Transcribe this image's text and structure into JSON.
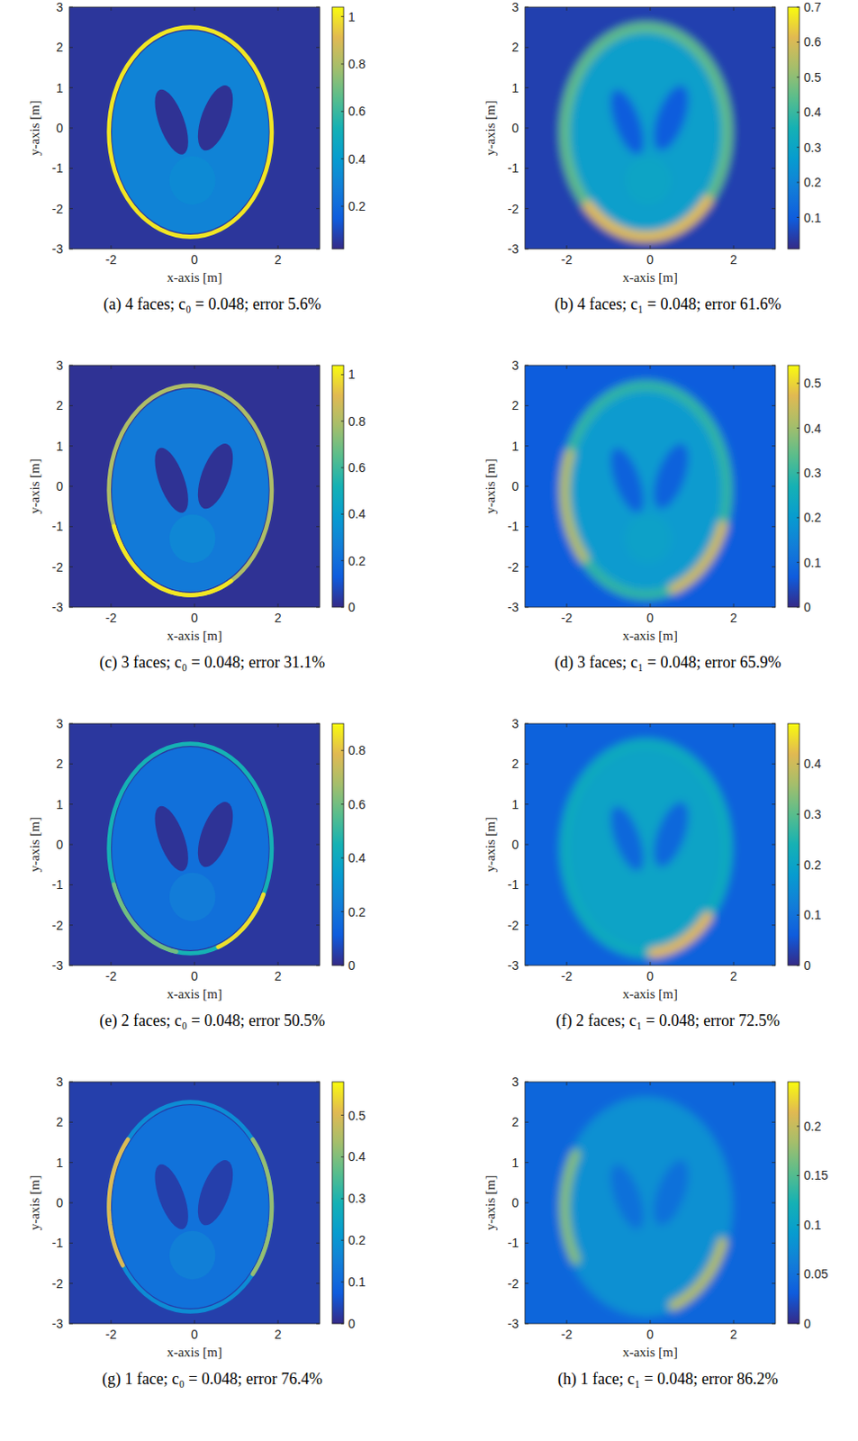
{
  "chart_data": [
    {
      "type": "heatmap",
      "caption": "(a) 4 faces; c₀ = 0.048; error 5.6%",
      "xlabel": "x-axis [m]",
      "ylabel": "y-axis [m]",
      "xlim": [
        -3,
        3
      ],
      "ylim": [
        -3,
        3
      ],
      "xticks": [
        -2,
        0,
        2
      ],
      "yticks": [
        -3,
        -2,
        -1,
        0,
        1,
        2,
        3
      ],
      "colorbar": {
        "lim": [
          0.02,
          1.04
        ],
        "ticks": [
          0.2,
          0.4,
          0.6,
          0.8,
          1
        ]
      },
      "background": 0.05,
      "shapes": [
        {
          "kind": "ellipse",
          "cx": -0.1,
          "cy": -0.1,
          "rx": 1.88,
          "ry": 2.52,
          "value": 0.3
        },
        {
          "kind": "ellipse",
          "cx": -0.05,
          "cy": -1.3,
          "rx": 0.55,
          "ry": 0.6,
          "value": 0.33
        },
        {
          "kind": "ellipse",
          "cx": -0.55,
          "cy": 0.15,
          "rx": 0.3,
          "ry": 0.85,
          "angle": 20,
          "value": 0.04
        },
        {
          "kind": "ellipse",
          "cx": 0.5,
          "cy": 0.25,
          "rx": 0.33,
          "ry": 0.85,
          "angle": -20,
          "value": 0.04
        },
        {
          "kind": "ring",
          "cx": -0.1,
          "cy": -0.1,
          "rx": 1.95,
          "ry": 2.6,
          "width": 0.1,
          "value": 1.0
        }
      ]
    },
    {
      "type": "heatmap",
      "caption": "(b) 4 faces; c₁ = 0.048; error 61.6%",
      "xlabel": "x-axis [m]",
      "ylabel": "y-axis [m]",
      "xlim": [
        -3,
        3
      ],
      "ylim": [
        -3,
        3
      ],
      "xticks": [
        -2,
        0,
        2
      ],
      "yticks": [
        -3,
        -2,
        -1,
        0,
        1,
        2,
        3
      ],
      "colorbar": {
        "lim": [
          0.01,
          0.7
        ],
        "ticks": [
          0.1,
          0.2,
          0.3,
          0.4,
          0.5,
          0.6,
          0.7
        ]
      },
      "background": 0.05,
      "shapes": [
        {
          "kind": "ellipse",
          "cx": -0.1,
          "cy": -0.1,
          "rx": 1.88,
          "ry": 2.52,
          "value": 0.28
        },
        {
          "kind": "ellipse",
          "cx": -0.05,
          "cy": -1.3,
          "rx": 0.55,
          "ry": 0.6,
          "value": 0.3
        },
        {
          "kind": "ellipse",
          "cx": -0.55,
          "cy": 0.15,
          "rx": 0.3,
          "ry": 0.85,
          "angle": 20,
          "value": 0.1
        },
        {
          "kind": "ellipse",
          "cx": 0.5,
          "cy": 0.25,
          "rx": 0.33,
          "ry": 0.85,
          "angle": -20,
          "value": 0.1
        },
        {
          "kind": "ring",
          "cx": -0.1,
          "cy": -0.1,
          "rx": 1.95,
          "ry": 2.6,
          "width": 0.25,
          "value": 0.45
        },
        {
          "kind": "arc",
          "cx": -0.1,
          "cy": -0.1,
          "rx": 1.95,
          "ry": 2.6,
          "width": 0.25,
          "from": 225,
          "to": 320,
          "value": 0.62
        }
      ]
    },
    {
      "type": "heatmap",
      "caption": "(c) 3 faces; c₀ = 0.048; error 31.1%",
      "xlabel": "x-axis [m]",
      "ylabel": "y-axis [m]",
      "xlim": [
        -3,
        3
      ],
      "ylim": [
        -3,
        3
      ],
      "xticks": [
        -2,
        0,
        2
      ],
      "yticks": [
        -3,
        -2,
        -1,
        0,
        1,
        2,
        3
      ],
      "colorbar": {
        "lim": [
          0,
          1.04
        ],
        "ticks": [
          0,
          0.2,
          0.4,
          0.6,
          0.8,
          1
        ]
      },
      "background": 0.02,
      "shapes": [
        {
          "kind": "ellipse",
          "cx": -0.1,
          "cy": -0.1,
          "rx": 1.88,
          "ry": 2.52,
          "value": 0.25
        },
        {
          "kind": "ellipse",
          "cx": -0.05,
          "cy": -1.3,
          "rx": 0.55,
          "ry": 0.6,
          "value": 0.3
        },
        {
          "kind": "ellipse",
          "cx": -0.55,
          "cy": 0.15,
          "rx": 0.3,
          "ry": 0.85,
          "angle": 20,
          "value": 0.02
        },
        {
          "kind": "ellipse",
          "cx": 0.5,
          "cy": 0.25,
          "rx": 0.33,
          "ry": 0.85,
          "angle": -20,
          "value": 0.02
        },
        {
          "kind": "ring",
          "cx": -0.1,
          "cy": -0.1,
          "rx": 1.95,
          "ry": 2.6,
          "width": 0.1,
          "value": 0.8
        },
        {
          "kind": "arc",
          "cx": -0.1,
          "cy": -0.1,
          "rx": 1.95,
          "ry": 2.6,
          "width": 0.1,
          "from": 200,
          "to": 300,
          "value": 1.0
        }
      ]
    },
    {
      "type": "heatmap",
      "caption": "(d) 3 faces; c₁ = 0.048; error 65.9%",
      "xlabel": "x-axis [m]",
      "ylabel": "y-axis [m]",
      "xlim": [
        -3,
        3
      ],
      "ylim": [
        -3,
        3
      ],
      "xticks": [
        -2,
        0,
        2
      ],
      "yticks": [
        -3,
        -2,
        -1,
        0,
        1,
        2,
        3
      ],
      "colorbar": {
        "lim": [
          0,
          0.54
        ],
        "ticks": [
          0,
          0.1,
          0.2,
          0.3,
          0.4,
          0.5
        ]
      },
      "background": 0.07,
      "shapes": [
        {
          "kind": "ellipse",
          "cx": -0.1,
          "cy": -0.1,
          "rx": 1.88,
          "ry": 2.52,
          "value": 0.2
        },
        {
          "kind": "ellipse",
          "cx": -0.05,
          "cy": -1.3,
          "rx": 0.55,
          "ry": 0.6,
          "value": 0.22
        },
        {
          "kind": "ellipse",
          "cx": -0.55,
          "cy": 0.15,
          "rx": 0.3,
          "ry": 0.85,
          "angle": 20,
          "value": 0.08
        },
        {
          "kind": "ellipse",
          "cx": 0.5,
          "cy": 0.25,
          "rx": 0.33,
          "ry": 0.85,
          "angle": -20,
          "value": 0.08
        },
        {
          "kind": "ring",
          "cx": -0.1,
          "cy": -0.1,
          "rx": 1.95,
          "ry": 2.6,
          "width": 0.25,
          "value": 0.3
        },
        {
          "kind": "arc",
          "cx": -0.1,
          "cy": -0.1,
          "rx": 1.95,
          "ry": 2.6,
          "width": 0.25,
          "from": 160,
          "to": 220,
          "value": 0.42
        },
        {
          "kind": "arc",
          "cx": -0.1,
          "cy": -0.1,
          "rx": 1.95,
          "ry": 2.6,
          "width": 0.25,
          "from": 290,
          "to": 340,
          "value": 0.45
        }
      ]
    },
    {
      "type": "heatmap",
      "caption": "(e) 2 faces; c₀ = 0.048; error 50.5%",
      "xlabel": "x-axis [m]",
      "ylabel": "y-axis [m]",
      "xlim": [
        -3,
        3
      ],
      "ylim": [
        -3,
        3
      ],
      "xticks": [
        -2,
        0,
        2
      ],
      "yticks": [
        -3,
        -2,
        -1,
        0,
        1,
        2,
        3
      ],
      "colorbar": {
        "lim": [
          0,
          0.9
        ],
        "ticks": [
          0,
          0.2,
          0.4,
          0.6,
          0.8
        ]
      },
      "background": 0.03,
      "shapes": [
        {
          "kind": "ellipse",
          "cx": -0.1,
          "cy": -0.1,
          "rx": 1.88,
          "ry": 2.52,
          "value": 0.18
        },
        {
          "kind": "ellipse",
          "cx": -0.05,
          "cy": -1.3,
          "rx": 0.55,
          "ry": 0.6,
          "value": 0.22
        },
        {
          "kind": "ellipse",
          "cx": -0.55,
          "cy": 0.15,
          "rx": 0.3,
          "ry": 0.85,
          "angle": 20,
          "value": 0.02
        },
        {
          "kind": "ellipse",
          "cx": 0.5,
          "cy": 0.25,
          "rx": 0.33,
          "ry": 0.85,
          "angle": -20,
          "value": 0.02
        },
        {
          "kind": "ring",
          "cx": -0.1,
          "cy": -0.1,
          "rx": 1.95,
          "ry": 2.6,
          "width": 0.1,
          "value": 0.45
        },
        {
          "kind": "arc",
          "cx": -0.1,
          "cy": -0.1,
          "rx": 1.95,
          "ry": 2.6,
          "width": 0.1,
          "from": 200,
          "to": 260,
          "value": 0.6
        },
        {
          "kind": "arc",
          "cx": -0.1,
          "cy": -0.1,
          "rx": 1.95,
          "ry": 2.6,
          "width": 0.1,
          "from": 290,
          "to": 335,
          "value": 0.85
        }
      ]
    },
    {
      "type": "heatmap",
      "caption": "(f) 2 faces; c₁ = 0.048; error 72.5%",
      "xlabel": "x-axis [m]",
      "ylabel": "y-axis [m]",
      "xlim": [
        -3,
        3
      ],
      "ylim": [
        -3,
        3
      ],
      "xticks": [
        -2,
        0,
        2
      ],
      "yticks": [
        -3,
        -2,
        -1,
        0,
        1,
        2,
        3
      ],
      "colorbar": {
        "lim": [
          0,
          0.48
        ],
        "ticks": [
          0,
          0.1,
          0.2,
          0.3,
          0.4
        ]
      },
      "background": 0.07,
      "shapes": [
        {
          "kind": "ellipse",
          "cx": -0.1,
          "cy": -0.1,
          "rx": 1.88,
          "ry": 2.52,
          "value": 0.2
        },
        {
          "kind": "ellipse",
          "cx": -0.05,
          "cy": -1.3,
          "rx": 0.55,
          "ry": 0.6,
          "value": 0.2
        },
        {
          "kind": "ellipse",
          "cx": -0.55,
          "cy": 0.15,
          "rx": 0.3,
          "ry": 0.85,
          "angle": 20,
          "value": 0.08
        },
        {
          "kind": "ellipse",
          "cx": 0.5,
          "cy": 0.25,
          "rx": 0.33,
          "ry": 0.85,
          "angle": -20,
          "value": 0.08
        },
        {
          "kind": "ring",
          "cx": -0.1,
          "cy": -0.1,
          "rx": 1.95,
          "ry": 2.6,
          "width": 0.25,
          "value": 0.22
        },
        {
          "kind": "arc",
          "cx": -0.1,
          "cy": -0.1,
          "rx": 1.95,
          "ry": 2.6,
          "width": 0.25,
          "from": 275,
          "to": 320,
          "value": 0.42
        }
      ]
    },
    {
      "type": "heatmap",
      "caption": "(g) 1 face; c₀ = 0.048; error 76.4%",
      "xlabel": "x-axis [m]",
      "ylabel": "y-axis [m]",
      "xlim": [
        -3,
        3
      ],
      "ylim": [
        -3,
        3
      ],
      "xticks": [
        -2,
        0,
        2
      ],
      "yticks": [
        -3,
        -2,
        -1,
        0,
        1,
        2,
        3
      ],
      "colorbar": {
        "lim": [
          0,
          0.58
        ],
        "ticks": [
          0,
          0.1,
          0.2,
          0.3,
          0.4,
          0.5
        ]
      },
      "background": 0.03,
      "shapes": [
        {
          "kind": "ellipse",
          "cx": -0.1,
          "cy": -0.1,
          "rx": 1.88,
          "ry": 2.52,
          "value": 0.12
        },
        {
          "kind": "ellipse",
          "cx": -0.05,
          "cy": -1.3,
          "rx": 0.55,
          "ry": 0.6,
          "value": 0.15
        },
        {
          "kind": "ellipse",
          "cx": -0.55,
          "cy": 0.15,
          "rx": 0.3,
          "ry": 0.85,
          "angle": 20,
          "value": 0.03
        },
        {
          "kind": "ellipse",
          "cx": 0.5,
          "cy": 0.25,
          "rx": 0.33,
          "ry": 0.85,
          "angle": -20,
          "value": 0.03
        },
        {
          "kind": "ring",
          "cx": -0.1,
          "cy": -0.1,
          "rx": 1.95,
          "ry": 2.6,
          "width": 0.1,
          "value": 0.18
        },
        {
          "kind": "arc",
          "cx": -0.1,
          "cy": -0.1,
          "rx": 1.95,
          "ry": 2.6,
          "width": 0.1,
          "from": 140,
          "to": 215,
          "value": 0.5
        },
        {
          "kind": "arc",
          "cx": -0.1,
          "cy": -0.1,
          "rx": 1.95,
          "ry": 2.6,
          "width": 0.1,
          "from": -40,
          "to": 40,
          "value": 0.42
        }
      ]
    },
    {
      "type": "heatmap",
      "caption": "(h) 1 face; c₁ = 0.048; error 86.2%",
      "xlabel": "x-axis [m]",
      "ylabel": "y-axis [m]",
      "xlim": [
        -3,
        3
      ],
      "ylim": [
        -3,
        3
      ],
      "xticks": [
        -2,
        0,
        2
      ],
      "yticks": [
        -3,
        -2,
        -1,
        0,
        1,
        2,
        3
      ],
      "colorbar": {
        "lim": [
          0,
          0.245
        ],
        "ticks": [
          0,
          0.05,
          0.1,
          0.15,
          0.2
        ]
      },
      "background": 0.04,
      "shapes": [
        {
          "kind": "ellipse",
          "cx": -0.1,
          "cy": -0.1,
          "rx": 1.88,
          "ry": 2.52,
          "value": 0.08
        },
        {
          "kind": "ellipse",
          "cx": -0.05,
          "cy": -1.3,
          "rx": 0.55,
          "ry": 0.6,
          "value": 0.08
        },
        {
          "kind": "ellipse",
          "cx": -0.55,
          "cy": 0.15,
          "rx": 0.3,
          "ry": 0.85,
          "angle": 20,
          "value": 0.05
        },
        {
          "kind": "ellipse",
          "cx": 0.5,
          "cy": 0.25,
          "rx": 0.33,
          "ry": 0.85,
          "angle": -20,
          "value": 0.05
        },
        {
          "kind": "ring",
          "cx": -0.1,
          "cy": -0.1,
          "rx": 1.95,
          "ry": 2.6,
          "width": 0.25,
          "value": 0.08
        },
        {
          "kind": "arc",
          "cx": -0.1,
          "cy": -0.1,
          "rx": 1.95,
          "ry": 2.6,
          "width": 0.25,
          "from": 150,
          "to": 210,
          "value": 0.17
        },
        {
          "kind": "arc",
          "cx": -0.1,
          "cy": -0.1,
          "rx": 1.95,
          "ry": 2.6,
          "width": 0.25,
          "from": 290,
          "to": 340,
          "value": 0.19
        }
      ]
    }
  ]
}
